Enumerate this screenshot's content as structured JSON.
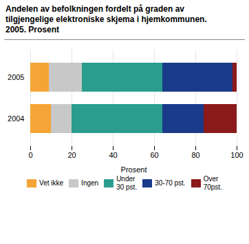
{
  "chart_data": {
    "type": "bar",
    "orientation": "horizontal",
    "stacked": true,
    "title": "Andelen av befolkningen fordelt på graden av\ntilgjengelige elektroniske skjema i hjemkommunen.\n2005. Prosent",
    "xlabel": "Prosent",
    "categories": [
      "2005",
      "2004"
    ],
    "series": [
      {
        "name": "Vet ikke",
        "color": "#F4A535",
        "values": [
          9,
          10
        ]
      },
      {
        "name": "Ingen",
        "color": "#C8C8C8",
        "values": [
          16,
          10
        ]
      },
      {
        "name": "Under\n30 pst.",
        "color": "#2A9D8F",
        "values": [
          39,
          44
        ]
      },
      {
        "name": "30-70 pst.",
        "color": "#1A3A8A",
        "values": [
          34,
          20
        ]
      },
      {
        "name": "Over\n70pst.",
        "color": "#8B1A1A",
        "values": [
          2,
          16
        ]
      }
    ],
    "xlim": [
      0,
      100
    ],
    "xticks": [
      0,
      20,
      40,
      60,
      80,
      100
    ],
    "grid": true,
    "legend": "bottom"
  }
}
